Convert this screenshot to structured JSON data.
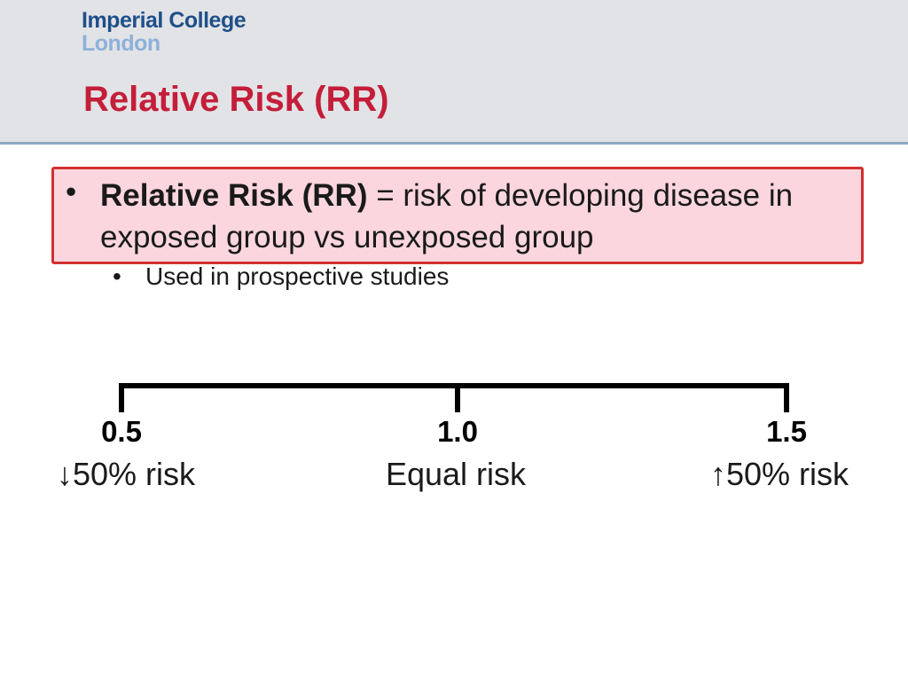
{
  "header": {
    "logo_line1": "Imperial College",
    "logo_line2": "London",
    "title": "Relative Risk (RR)"
  },
  "definition": {
    "bullet": "•",
    "term": "Relative Risk (RR)",
    "text": " = risk of developing disease in exposed group vs unexposed group",
    "sub_bullet": "•",
    "sub_text": "Used in prospective studies"
  },
  "scale": {
    "ticks": [
      {
        "value": "0.5",
        "label": "↓50% risk"
      },
      {
        "value": "1.0",
        "label": "Equal risk"
      },
      {
        "value": "1.5",
        "label": "↑50% risk"
      }
    ]
  }
}
